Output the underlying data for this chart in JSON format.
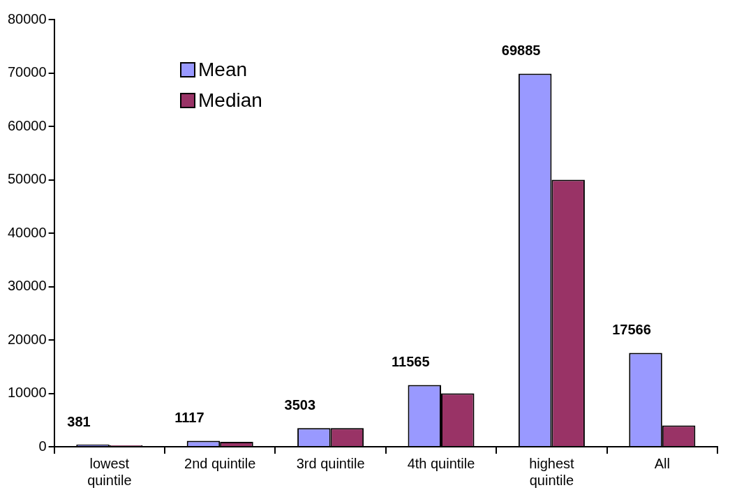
{
  "chart_data": {
    "type": "bar",
    "categories": [
      "lowest quintile",
      "2nd quintile",
      "3rd quintile",
      "4th quintile",
      "highest quintile",
      "All"
    ],
    "series": [
      {
        "name": "Mean",
        "color": "#9999ff",
        "values": [
          381,
          1117,
          3503,
          11565,
          69885,
          17566
        ],
        "value_labels": [
          "381",
          "1117",
          "3503",
          "11565",
          "69885",
          "17566"
        ]
      },
      {
        "name": "Median",
        "color": "#993366",
        "values": [
          300,
          900,
          3500,
          10000,
          50000,
          4000
        ]
      }
    ],
    "ylim": [
      0,
      80000
    ],
    "yticks": [
      0,
      10000,
      20000,
      30000,
      40000,
      50000,
      60000,
      70000,
      80000
    ],
    "legend": "top left"
  }
}
